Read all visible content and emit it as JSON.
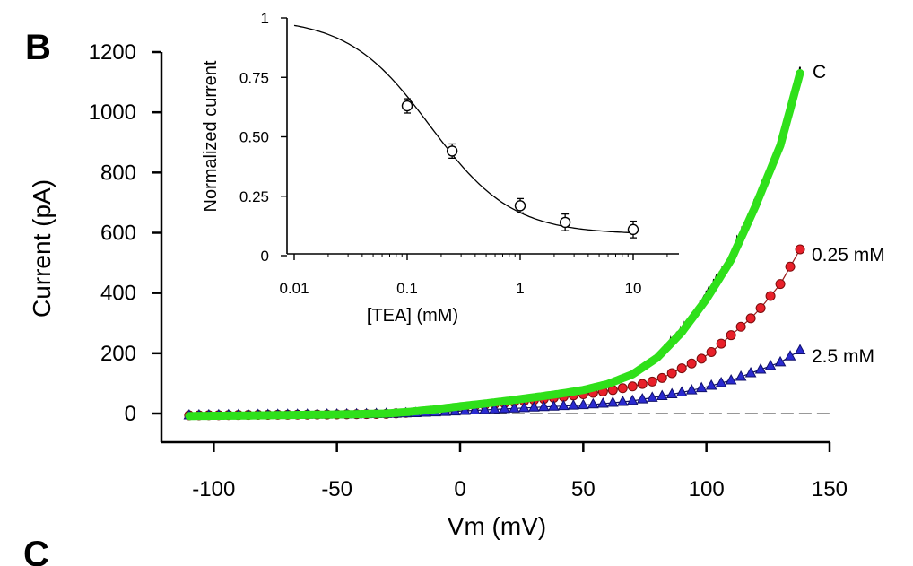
{
  "panel_labels": {
    "main": "B",
    "next": "C"
  },
  "chart_data": [
    {
      "id": "main",
      "type": "line",
      "xlabel": "Vm (mV)",
      "ylabel": "Current (pA)",
      "xlim": [
        -120,
        150
      ],
      "ylim": [
        -100,
        1220
      ],
      "xticks": [
        -100,
        -50,
        0,
        50,
        100,
        150
      ],
      "yticks": [
        0,
        200,
        400,
        600,
        800,
        1000,
        1200
      ],
      "zero_line": "dashed",
      "series": [
        {
          "name": "C",
          "kind": "noisy-trace",
          "color": "#000000",
          "points": [
            [
              -110,
              -8
            ],
            [
              -90,
              -6
            ],
            [
              -70,
              -4
            ],
            [
              -50,
              -2
            ],
            [
              -30,
              2
            ],
            [
              -20,
              8
            ],
            [
              -10,
              15
            ],
            [
              0,
              25
            ],
            [
              10,
              34
            ],
            [
              20,
              45
            ],
            [
              30,
              56
            ],
            [
              40,
              67
            ],
            [
              50,
              80
            ],
            [
              60,
              100
            ],
            [
              70,
              130
            ],
            [
              80,
              190
            ],
            [
              90,
              280
            ],
            [
              100,
              390
            ],
            [
              110,
              520
            ],
            [
              120,
              700
            ],
            [
              130,
              900
            ],
            [
              138,
              1140
            ]
          ]
        },
        {
          "name": "",
          "kind": "fit",
          "color": "#2fe01a",
          "points": [
            [
              -110,
              -8
            ],
            [
              -90,
              -7
            ],
            [
              -70,
              -5
            ],
            [
              -50,
              -3
            ],
            [
              -30,
              0
            ],
            [
              -20,
              6
            ],
            [
              -10,
              14
            ],
            [
              0,
              24
            ],
            [
              10,
              33
            ],
            [
              20,
              43
            ],
            [
              30,
              54
            ],
            [
              40,
              65
            ],
            [
              50,
              78
            ],
            [
              60,
              98
            ],
            [
              70,
              130
            ],
            [
              80,
              185
            ],
            [
              90,
              270
            ],
            [
              100,
              380
            ],
            [
              110,
              510
            ],
            [
              120,
              690
            ],
            [
              130,
              890
            ],
            [
              138,
              1130
            ]
          ]
        },
        {
          "name": "0.25 mM",
          "kind": "circles",
          "color": "#e8202a",
          "points": [
            [
              -110,
              -6
            ],
            [
              -90,
              -5
            ],
            [
              -70,
              -4
            ],
            [
              -50,
              -3
            ],
            [
              -30,
              -1
            ],
            [
              -20,
              3
            ],
            [
              -10,
              10
            ],
            [
              0,
              20
            ],
            [
              10,
              28
            ],
            [
              20,
              36
            ],
            [
              30,
              45
            ],
            [
              40,
              54
            ],
            [
              50,
              64
            ],
            [
              60,
              75
            ],
            [
              70,
              90
            ],
            [
              80,
              110
            ],
            [
              90,
              150
            ],
            [
              100,
              190
            ],
            [
              110,
              260
            ],
            [
              120,
              330
            ],
            [
              130,
              430
            ],
            [
              138,
              545
            ]
          ]
        },
        {
          "name": "2.5 mM",
          "kind": "triangles",
          "color": "#2a2ad0",
          "points": [
            [
              -110,
              -6
            ],
            [
              -90,
              -5
            ],
            [
              -70,
              -4
            ],
            [
              -50,
              -3
            ],
            [
              -30,
              -1
            ],
            [
              -20,
              1
            ],
            [
              -10,
              4
            ],
            [
              0,
              8
            ],
            [
              10,
              12
            ],
            [
              20,
              16
            ],
            [
              30,
              20
            ],
            [
              40,
              24
            ],
            [
              50,
              28
            ],
            [
              60,
              34
            ],
            [
              70,
              42
            ],
            [
              80,
              55
            ],
            [
              90,
              70
            ],
            [
              100,
              88
            ],
            [
              110,
              110
            ],
            [
              120,
              140
            ],
            [
              130,
              170
            ],
            [
              138,
              210
            ]
          ]
        }
      ]
    },
    {
      "id": "inset",
      "type": "scatter",
      "xlabel": "[TEA] (mM)",
      "ylabel": "Normalized current",
      "xscale": "log",
      "xlim": [
        0.01,
        25
      ],
      "ylim": [
        0,
        1
      ],
      "xticks": [
        0.01,
        0.1,
        1,
        10
      ],
      "xtick_labels": [
        "0.01",
        "0.1",
        "1",
        "10"
      ],
      "yticks": [
        0,
        0.25,
        0.5,
        0.75,
        1
      ],
      "ytick_labels": [
        "0",
        "0.25",
        "0.50",
        "0.75",
        "1"
      ],
      "points": [
        {
          "x": 0.1,
          "y": 0.63,
          "err": 0.03
        },
        {
          "x": 0.25,
          "y": 0.44,
          "err": 0.03
        },
        {
          "x": 1,
          "y": 0.21,
          "err": 0.03
        },
        {
          "x": 2.5,
          "y": 0.14,
          "err": 0.035
        },
        {
          "x": 10,
          "y": 0.11,
          "err": 0.035
        }
      ],
      "fit": {
        "ic50": 0.16,
        "hill": 1.2,
        "bottom": 0.09,
        "top": 1.0
      }
    }
  ]
}
